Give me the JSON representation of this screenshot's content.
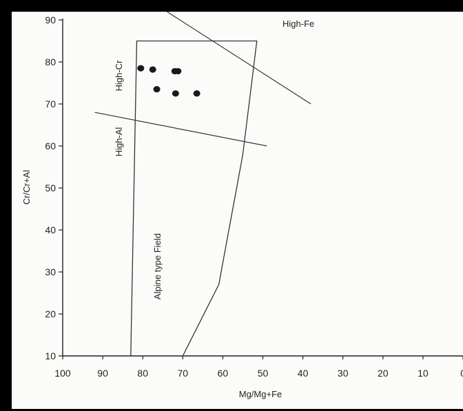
{
  "chart_data": {
    "type": "scatter",
    "xlabel": "Mg/Mg+Fe",
    "ylabel": "Cr/Cr+Al",
    "xlim": [
      100,
      0
    ],
    "ylim": [
      10,
      90
    ],
    "x_ticks": [
      "100",
      "90",
      "80",
      "70",
      "60",
      "50",
      "40",
      "30",
      "20",
      "10",
      "0"
    ],
    "y_ticks": [
      "90",
      "80",
      "70",
      "60",
      "50",
      "40",
      "30",
      "20",
      "10"
    ],
    "grid": false,
    "points": [
      {
        "x": 80.5,
        "y": 78.5
      },
      {
        "x": 77.5,
        "y": 78.2
      },
      {
        "x": 72.0,
        "y": 77.8
      },
      {
        "x": 71.2,
        "y": 77.8
      },
      {
        "x": 76.5,
        "y": 73.5
      },
      {
        "x": 71.8,
        "y": 72.5
      },
      {
        "x": 66.5,
        "y": 72.5
      }
    ],
    "alpine_field": {
      "label": "Alpine type Field",
      "outline": [
        [
          83,
          10
        ],
        [
          81.5,
          85
        ],
        [
          51.5,
          85
        ],
        [
          55,
          58
        ],
        [
          61,
          27
        ],
        [
          70,
          10
        ]
      ]
    },
    "high_fe_line": {
      "label": "High-Fe",
      "from": [
        74,
        92
      ],
      "to": [
        38,
        70
      ]
    },
    "high_al_line": {
      "label": "High-Al",
      "from": [
        92,
        68
      ],
      "to": [
        49,
        60
      ]
    },
    "region_labels": {
      "high_cr": "High-Cr",
      "high_al": "High-Al",
      "high_fe": "High-Fe"
    }
  }
}
